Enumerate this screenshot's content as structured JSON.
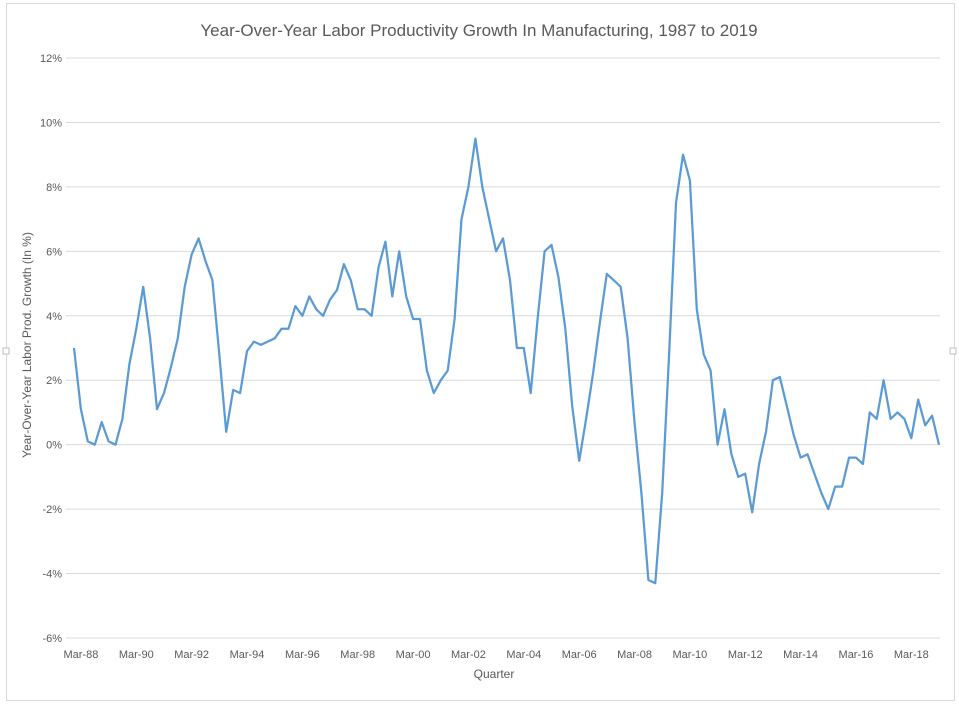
{
  "chart_data": {
    "type": "line",
    "title": "Year-Over-Year Labor Productivity Growth In Manufacturing, 1987 to 2019",
    "xlabel": "Quarter",
    "ylabel": "Year-Over-Year Labor Prod. Growth (In %)",
    "ylim": [
      -6,
      12
    ],
    "y_ticks": [
      12,
      10,
      8,
      6,
      4,
      2,
      0,
      -2,
      -4,
      -6
    ],
    "y_tick_labels": [
      "12%",
      "10%",
      "8%",
      "6%",
      "4%",
      "2%",
      "0%",
      "-2%",
      "-4%",
      "-6%"
    ],
    "x_tick_labels": [
      "Mar-88",
      "Mar-90",
      "Mar-92",
      "Mar-94",
      "Mar-96",
      "Mar-98",
      "Mar-00",
      "Mar-02",
      "Mar-04",
      "Mar-06",
      "Mar-08",
      "Mar-10",
      "Mar-12",
      "Mar-14",
      "Mar-16",
      "Mar-18"
    ],
    "grid": true,
    "legend": "none",
    "series": [
      {
        "color": "#5b9bd5",
        "values": [
          3.0,
          1.1,
          0.1,
          0.0,
          0.7,
          0.1,
          0.0,
          0.8,
          2.5,
          3.6,
          4.9,
          3.3,
          1.1,
          1.6,
          2.4,
          3.3,
          4.9,
          5.9,
          6.4,
          5.7,
          5.1,
          2.8,
          0.4,
          1.7,
          1.6,
          2.9,
          3.2,
          3.1,
          3.2,
          3.3,
          3.6,
          3.6,
          4.3,
          4.0,
          4.6,
          4.2,
          4.0,
          4.5,
          4.8,
          5.6,
          5.1,
          4.2,
          4.2,
          4.0,
          5.5,
          6.3,
          4.6,
          6.0,
          4.6,
          3.9,
          3.9,
          2.3,
          1.6,
          2.0,
          2.3,
          3.9,
          7.0,
          8.0,
          9.5,
          8.0,
          7.0,
          6.0,
          6.4,
          5.1,
          3.0,
          3.0,
          1.6,
          3.9,
          6.0,
          6.2,
          5.2,
          3.6,
          1.2,
          -0.5,
          0.8,
          2.2,
          3.8,
          5.3,
          5.1,
          4.9,
          3.3,
          0.7,
          -1.5,
          -4.2,
          -4.3,
          -1.5,
          2.8,
          7.5,
          9.0,
          8.2,
          4.2,
          2.8,
          2.3,
          0.0,
          1.1,
          -0.3,
          -1.0,
          -0.9,
          -2.1,
          -0.6,
          0.4,
          2.0,
          2.1,
          1.2,
          0.3,
          -0.4,
          -0.3,
          -0.9,
          -1.5,
          -2.0,
          -1.3,
          -1.3,
          -0.4,
          -0.4,
          -0.6,
          1.0,
          0.8,
          2.0,
          0.8,
          1.0,
          0.8,
          0.2,
          1.4,
          0.6,
          0.9,
          0.0
        ]
      }
    ]
  }
}
